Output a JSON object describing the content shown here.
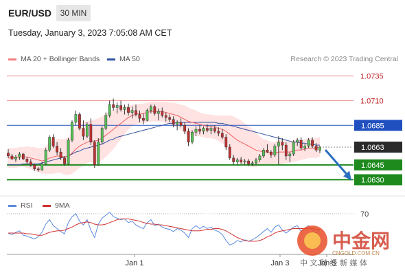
{
  "header": {
    "symbol": "EUR/USD",
    "interval": "30 MIN",
    "timestamp": "Tuesday, January 3, 2023 7:05:08 AM CET"
  },
  "legend": {
    "ma20_label": "MA 20 + Bollinger Bands",
    "ma50_label": "MA 50",
    "credit": "Research © 2023 Trading Central",
    "rsi_label": "RSI",
    "rsi_ma_label": "9MA"
  },
  "watermark": {
    "brand": "中金网",
    "domain": "CNGOLD.COM.CN",
    "slogan": "中 文 财 经 新 媒 体"
  },
  "colors": {
    "candle_up": "#55c055",
    "candle_down": "#c03030",
    "ma20": "#f06060",
    "ma50": "#3050a0",
    "bollinger_fill": "#ffd8d8",
    "resistance": "#f08080",
    "pivot_blue": "#2050c0",
    "support": "#1e8a1e",
    "rsi": "#5b8be0",
    "rsi_ma": "#d03030",
    "arrow": "#2a6fc0"
  },
  "chart_data": {
    "type": "candlestick",
    "x_tick_labels": [
      "Jan 1",
      "Jan 3",
      "Jan 5"
    ],
    "ylim": [
      1.0615,
      1.0745
    ],
    "levels": [
      {
        "value": 1.0735,
        "label": "1.0735",
        "kind": "resistance"
      },
      {
        "value": 1.071,
        "label": "1.0710",
        "kind": "resistance"
      },
      {
        "value": 1.0685,
        "label": "1.0685",
        "kind": "pivot"
      },
      {
        "value": 1.0663,
        "label": "1.0663",
        "kind": "last"
      },
      {
        "value": 1.0645,
        "label": "1.0645",
        "kind": "support"
      },
      {
        "value": 1.063,
        "label": "1.0630",
        "kind": "support"
      }
    ],
    "candles": [
      [
        1.0657,
        1.0661,
        1.0652,
        1.0654
      ],
      [
        1.0654,
        1.0656,
        1.065,
        1.0651
      ],
      [
        1.0651,
        1.0655,
        1.0648,
        1.0653
      ],
      [
        1.0653,
        1.0658,
        1.065,
        1.0656
      ],
      [
        1.0656,
        1.0657,
        1.065,
        1.0651
      ],
      [
        1.0651,
        1.0653,
        1.0646,
        1.0648
      ],
      [
        1.0648,
        1.0651,
        1.0643,
        1.0645
      ],
      [
        1.0645,
        1.0646,
        1.0639,
        1.0641
      ],
      [
        1.0641,
        1.0643,
        1.0638,
        1.064
      ],
      [
        1.064,
        1.0648,
        1.0639,
        1.0646
      ],
      [
        1.0646,
        1.0662,
        1.0645,
        1.066
      ],
      [
        1.066,
        1.0675,
        1.0658,
        1.0673
      ],
      [
        1.0673,
        1.0676,
        1.0662,
        1.0664
      ],
      [
        1.0664,
        1.0668,
        1.0655,
        1.0658
      ],
      [
        1.0658,
        1.0662,
        1.065,
        1.0652
      ],
      [
        1.0652,
        1.0654,
        1.0644,
        1.0646
      ],
      [
        1.0646,
        1.0672,
        1.0645,
        1.067
      ],
      [
        1.067,
        1.069,
        1.0668,
        1.0688
      ],
      [
        1.0688,
        1.07,
        1.0685,
        1.0696
      ],
      [
        1.0696,
        1.0698,
        1.068,
        1.0682
      ],
      [
        1.0682,
        1.069,
        1.067,
        1.0674
      ],
      [
        1.0674,
        1.0688,
        1.0672,
        1.0686
      ],
      [
        1.0686,
        1.0692,
        1.0665,
        1.0668
      ],
      [
        1.0668,
        1.067,
        1.0642,
        1.0645
      ],
      [
        1.0645,
        1.0672,
        1.0644,
        1.0668
      ],
      [
        1.0668,
        1.0684,
        1.0666,
        1.0682
      ],
      [
        1.0682,
        1.0698,
        1.068,
        1.0695
      ],
      [
        1.0695,
        1.071,
        1.0693,
        1.0706
      ],
      [
        1.0706,
        1.0712,
        1.07,
        1.0703
      ],
      [
        1.0703,
        1.0708,
        1.0697,
        1.0705
      ],
      [
        1.0705,
        1.071,
        1.0699,
        1.0701
      ],
      [
        1.0701,
        1.0706,
        1.0696,
        1.0703
      ],
      [
        1.0703,
        1.0707,
        1.0695,
        1.0698
      ],
      [
        1.0698,
        1.0704,
        1.0692,
        1.07
      ],
      [
        1.07,
        1.0706,
        1.0694,
        1.0696
      ],
      [
        1.0696,
        1.07,
        1.0688,
        1.0692
      ],
      [
        1.0692,
        1.0697,
        1.0686,
        1.069
      ],
      [
        1.069,
        1.0702,
        1.0689,
        1.07
      ],
      [
        1.07,
        1.0706,
        1.0697,
        1.0704
      ],
      [
        1.0704,
        1.0706,
        1.0695,
        1.0697
      ],
      [
        1.0697,
        1.0702,
        1.069,
        1.0699
      ],
      [
        1.0699,
        1.0703,
        1.0693,
        1.0695
      ],
      [
        1.0695,
        1.0698,
        1.0689,
        1.0693
      ],
      [
        1.0693,
        1.0696,
        1.0688,
        1.0691
      ],
      [
        1.0691,
        1.0694,
        1.0683,
        1.0686
      ],
      [
        1.0686,
        1.069,
        1.068,
        1.0688
      ],
      [
        1.0688,
        1.0692,
        1.0683,
        1.0685
      ],
      [
        1.0685,
        1.0688,
        1.0676,
        1.0679
      ],
      [
        1.0679,
        1.0682,
        1.0664,
        1.0668
      ],
      [
        1.0668,
        1.068,
        1.0666,
        1.0678
      ],
      [
        1.0678,
        1.0684,
        1.0674,
        1.0681
      ],
      [
        1.0681,
        1.0685,
        1.0676,
        1.0679
      ],
      [
        1.0679,
        1.0684,
        1.0676,
        1.0682
      ],
      [
        1.0682,
        1.0686,
        1.0678,
        1.068
      ],
      [
        1.068,
        1.0684,
        1.0676,
        1.0682
      ],
      [
        1.0682,
        1.0685,
        1.0677,
        1.0679
      ],
      [
        1.0679,
        1.0683,
        1.0674,
        1.0677
      ],
      [
        1.0677,
        1.0681,
        1.0671,
        1.0673
      ],
      [
        1.0673,
        1.0676,
        1.066,
        1.0663
      ],
      [
        1.0663,
        1.0666,
        1.065,
        1.0652
      ],
      [
        1.0652,
        1.0655,
        1.0645,
        1.0648
      ],
      [
        1.0648,
        1.0652,
        1.0645,
        1.065
      ],
      [
        1.065,
        1.0653,
        1.0646,
        1.0648
      ],
      [
        1.0648,
        1.0651,
        1.0645,
        1.0649
      ],
      [
        1.0649,
        1.0651,
        1.0644,
        1.0646
      ],
      [
        1.0646,
        1.0649,
        1.0644,
        1.0647
      ],
      [
        1.0647,
        1.0652,
        1.0645,
        1.065
      ],
      [
        1.065,
        1.0656,
        1.0648,
        1.0654
      ],
      [
        1.0654,
        1.0662,
        1.0652,
        1.066
      ],
      [
        1.066,
        1.0666,
        1.0657,
        1.0658
      ],
      [
        1.0658,
        1.066,
        1.0652,
        1.0655
      ],
      [
        1.0655,
        1.0666,
        1.0653,
        1.0664
      ],
      [
        1.0664,
        1.0674,
        1.0645,
        1.0668
      ],
      [
        1.0668,
        1.0672,
        1.066,
        1.0665
      ],
      [
        1.0665,
        1.0668,
        1.065,
        1.0654
      ],
      [
        1.0654,
        1.0658,
        1.0648,
        1.0656
      ],
      [
        1.0656,
        1.067,
        1.0654,
        1.0668
      ],
      [
        1.0668,
        1.0672,
        1.0664,
        1.067
      ],
      [
        1.067,
        1.0673,
        1.066,
        1.0662
      ],
      [
        1.0662,
        1.0666,
        1.0659,
        1.0664
      ],
      [
        1.0664,
        1.0672,
        1.0662,
        1.067
      ],
      [
        1.067,
        1.0673,
        1.0662,
        1.0664
      ],
      [
        1.0664,
        1.0667,
        1.0658,
        1.066
      ],
      [
        1.066,
        1.0664,
        1.0657,
        1.0663
      ]
    ],
    "ma20": [
      1.0652,
      1.0652,
      1.0652,
      1.0653,
      1.0653,
      1.0653,
      1.0652,
      1.0651,
      1.065,
      1.0649,
      1.065,
      1.0652,
      1.0653,
      1.0654,
      1.0654,
      1.0653,
      1.0654,
      1.0657,
      1.0661,
      1.0664,
      1.0666,
      1.0668,
      1.0669,
      1.0669,
      1.067,
      1.0672,
      1.0675,
      1.0678,
      1.0681,
      1.0684,
      1.0687,
      1.069,
      1.0693,
      1.0695,
      1.0696,
      1.0697,
      1.0697,
      1.0698,
      1.0699,
      1.0699,
      1.0699,
      1.0699,
      1.0698,
      1.0697,
      1.0696,
      1.0695,
      1.0693,
      1.0691,
      1.0689,
      1.0688,
      1.0687,
      1.0686,
      1.0685,
      1.0684,
      1.0684,
      1.0683,
      1.0682,
      1.0681,
      1.0679,
      1.0676,
      1.0673,
      1.067,
      1.0668,
      1.0666,
      1.0664,
      1.0662,
      1.066,
      1.0659,
      1.0658,
      1.0658,
      1.0657,
      1.0657,
      1.0658,
      1.0658,
      1.0658,
      1.0658,
      1.0659,
      1.066,
      1.066,
      1.0661,
      1.0662,
      1.0662,
      1.0662,
      1.0663
    ],
    "bollinger_width": [
      0.001,
      0.001,
      0.001,
      0.001,
      0.001,
      0.0011,
      0.0011,
      0.0012,
      0.0012,
      0.0013,
      0.0014,
      0.0016,
      0.0017,
      0.0017,
      0.0017,
      0.0018,
      0.0019,
      0.0021,
      0.0022,
      0.0022,
      0.0022,
      0.0021,
      0.0021,
      0.0022,
      0.0022,
      0.0022,
      0.0022,
      0.0021,
      0.002,
      0.0018,
      0.0016,
      0.0014,
      0.0012,
      0.0011,
      0.001,
      0.001,
      0.001,
      0.001,
      0.001,
      0.001,
      0.001,
      0.001,
      0.0011,
      0.0011,
      0.0012,
      0.0012,
      0.0013,
      0.0014,
      0.0014,
      0.0013,
      0.0013,
      0.0012,
      0.0012,
      0.0012,
      0.0012,
      0.0012,
      0.0013,
      0.0014,
      0.0016,
      0.0019,
      0.0021,
      0.0022,
      0.0022,
      0.0021,
      0.002,
      0.0019,
      0.0017,
      0.0015,
      0.0013,
      0.0012,
      0.0011,
      0.0011,
      0.0012,
      0.0012,
      0.0011,
      0.0011,
      0.0011,
      0.0011,
      0.001,
      0.001,
      0.001,
      0.001,
      0.001,
      0.001
    ],
    "ma50": [
      1.0645,
      1.0645,
      1.0645,
      1.0645,
      1.0646,
      1.0646,
      1.0646,
      1.0646,
      1.0646,
      1.0647,
      1.0648,
      1.0649,
      1.065,
      1.0651,
      1.0652,
      1.0653,
      1.0654,
      1.0656,
      1.0658,
      1.0659,
      1.0661,
      1.0662,
      1.0663,
      1.0664,
      1.0665,
      1.0666,
      1.0668,
      1.067,
      1.0671,
      1.0673,
      1.0674,
      1.0675,
      1.0676,
      1.0677,
      1.0678,
      1.0679,
      1.068,
      1.0681,
      1.0682,
      1.0683,
      1.0684,
      1.0685,
      1.0686,
      1.0687,
      1.0687,
      1.0688,
      1.0688,
      1.0688,
      1.0688,
      1.0688,
      1.0688,
      1.0688,
      1.0688,
      1.0688,
      1.0688,
      1.0688,
      1.0687,
      1.0687,
      1.0686,
      1.0685,
      1.0684,
      1.0683,
      1.0682,
      1.0681,
      1.068,
      1.0679,
      1.0678,
      1.0677,
      1.0676,
      1.0675,
      1.0674,
      1.0673,
      1.0672,
      1.0671,
      1.067,
      1.0669,
      1.0668,
      1.0668,
      1.0667,
      1.0667,
      1.0666,
      1.0666,
      1.0665,
      1.0665
    ],
    "projection": {
      "from": 1.0663,
      "to": 1.063
    },
    "rsi": {
      "level_label": "70",
      "ylim": [
        20,
        80
      ],
      "level": 70,
      "rsi": [
        44,
        42,
        45,
        47,
        41,
        40,
        38,
        36,
        39,
        45,
        56,
        62,
        54,
        50,
        46,
        43,
        58,
        66,
        70,
        60,
        55,
        62,
        48,
        38,
        56,
        64,
        68,
        72,
        66,
        64,
        62,
        63,
        58,
        60,
        55,
        52,
        50,
        58,
        62,
        54,
        56,
        52,
        50,
        49,
        46,
        50,
        48,
        44,
        38,
        50,
        54,
        50,
        53,
        50,
        52,
        48,
        46,
        42,
        34,
        28,
        30,
        34,
        32,
        35,
        33,
        35,
        38,
        42,
        46,
        50,
        45,
        52,
        55,
        48,
        44,
        48,
        52,
        54,
        46,
        50,
        54,
        48,
        44,
        48
      ],
      "ma": [
        44,
        44,
        44,
        44,
        44,
        43,
        43,
        42,
        41,
        41,
        43,
        45,
        46,
        47,
        47,
        48,
        50,
        52,
        55,
        57,
        58,
        59,
        58,
        56,
        55,
        55,
        56,
        58,
        60,
        62,
        63,
        63,
        63,
        62,
        61,
        60,
        58,
        57,
        56,
        56,
        55,
        55,
        54,
        53,
        52,
        51,
        50,
        49,
        48,
        47,
        47,
        47,
        48,
        49,
        49,
        50,
        50,
        49,
        47,
        44,
        41,
        38,
        36,
        34,
        33,
        33,
        33,
        34,
        36,
        39,
        41,
        44,
        46,
        47,
        48,
        49,
        50,
        50,
        50,
        50,
        50,
        50,
        49,
        49
      ]
    }
  }
}
